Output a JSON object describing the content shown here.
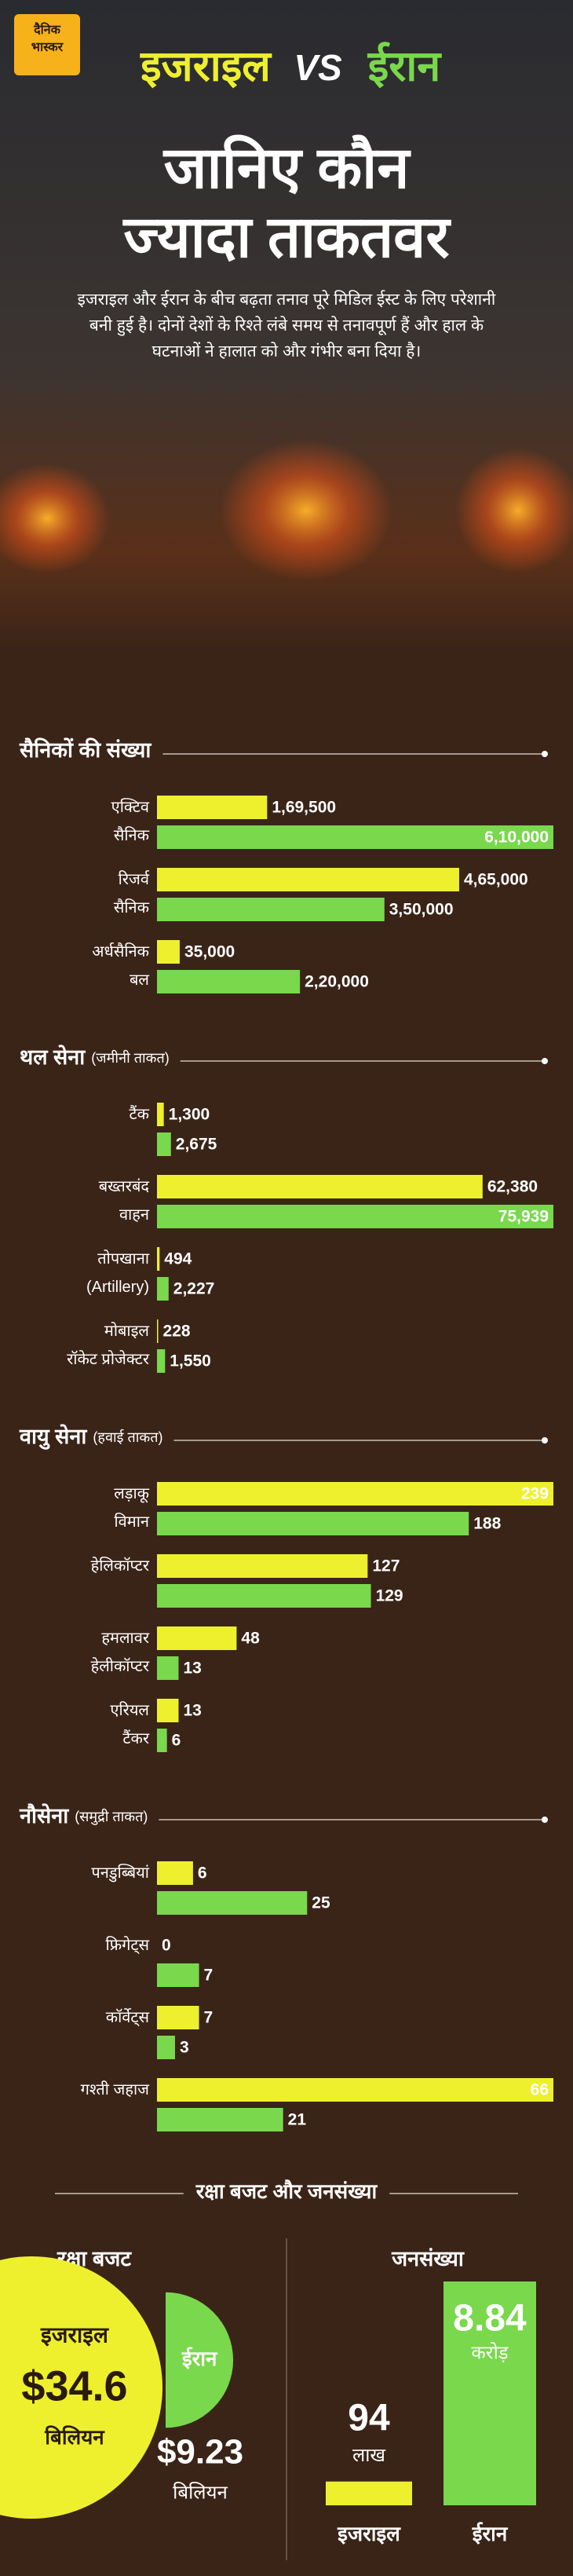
{
  "header": {
    "brand": "दैनिक\nभास्कर",
    "title_left": "इजराइल",
    "vs": "VS",
    "title_right": "ईरान",
    "headline": "जानिए कौन\nज्यादा ताकतवर",
    "intro": "इजराइल और ईरान के बीच बढ़ता तनाव पूरे मिडिल ईस्ट के लिए परेशानी बनी हुई है। दोनों देशों के रिश्ते लंबे समय से तनावपूर्ण हैं और हाल के घटनाओं ने हालात को और गंभीर बना दिया है।"
  },
  "summary_title": "रक्षा बजट और जनसंख्या",
  "chart_data": [
    {
      "type": "hbar",
      "title": "सैनिकों की संख्या",
      "categories": [
        "एक्टिव\nसैनिक",
        "रिजर्व\nसैनिक",
        "अर्धसैनिक\nबल"
      ],
      "series": [
        {
          "color": "#eef02d",
          "values": [
            169500,
            465000,
            35000
          ],
          "value_labels": [
            "1,69,500",
            "4,65,000",
            "35,000"
          ]
        },
        {
          "color": "#79d84c",
          "values": [
            610000,
            350000,
            220000
          ],
          "value_labels": [
            "6,10,000",
            "3,50,000",
            "2,20,000"
          ]
        }
      ]
    },
    {
      "type": "hbar",
      "title": "थल सेना",
      "subtitle": "(जमीनी ताकत)",
      "categories": [
        "टैंक",
        "बख्तरबंद\nवाहन",
        "तोपखाना\n(Artillery)",
        "मोबाइल\nरॉकेट प्रोजेक्टर"
      ],
      "series": [
        {
          "color": "#eef02d",
          "values": [
            1300,
            62380,
            494,
            228
          ],
          "value_labels": [
            "1,300",
            "62,380",
            "494",
            "228"
          ]
        },
        {
          "color": "#79d84c",
          "values": [
            2675,
            75939,
            2227,
            1550
          ],
          "value_labels": [
            "2,675",
            "75,939",
            "2,227",
            "1,550"
          ]
        }
      ]
    },
    {
      "type": "hbar",
      "title": "वायु सेना",
      "subtitle": "(हवाई ताकत)",
      "categories": [
        "लड़ाकू\nविमान",
        "हेलिकॉप्टर",
        "हमलावर\nहेलीकॉप्टर",
        "एरियल\nटैंकर"
      ],
      "series": [
        {
          "color": "#eef02d",
          "values": [
            239,
            127,
            48,
            13
          ]
        },
        {
          "color": "#79d84c",
          "values": [
            188,
            129,
            13,
            6
          ]
        }
      ]
    },
    {
      "type": "hbar",
      "title": "नौसेना",
      "subtitle": "(समुद्री ताकत)",
      "categories": [
        "पनडुब्बियां",
        "फ्रिगेट्स",
        "कॉर्वेट्स",
        "गश्ती जहाज"
      ],
      "series": [
        {
          "color": "#eef02d",
          "values": [
            6,
            0,
            7,
            66
          ]
        },
        {
          "color": "#79d84c",
          "values": [
            25,
            7,
            3,
            21
          ]
        }
      ]
    },
    {
      "type": "bubble",
      "title": "रक्षा बजट",
      "categories": [
        "इजराइल",
        "ईरान"
      ],
      "colors": [
        "#eef02d",
        "#79d84c"
      ],
      "values": [
        34.6,
        9.23
      ],
      "value_labels": [
        "$34.6",
        "$9.23"
      ],
      "unit_labels": [
        "बिलियन",
        "बिलियन"
      ]
    },
    {
      "type": "column",
      "title": "जनसंख्या",
      "categories": [
        "इजराइल",
        "ईरान"
      ],
      "colors": [
        "#eef02d",
        "#79d84c"
      ],
      "values": [
        9400000,
        88400000
      ],
      "value_labels": [
        "94",
        "8.84"
      ],
      "unit_labels": [
        "लाख",
        "करोड़"
      ]
    }
  ]
}
